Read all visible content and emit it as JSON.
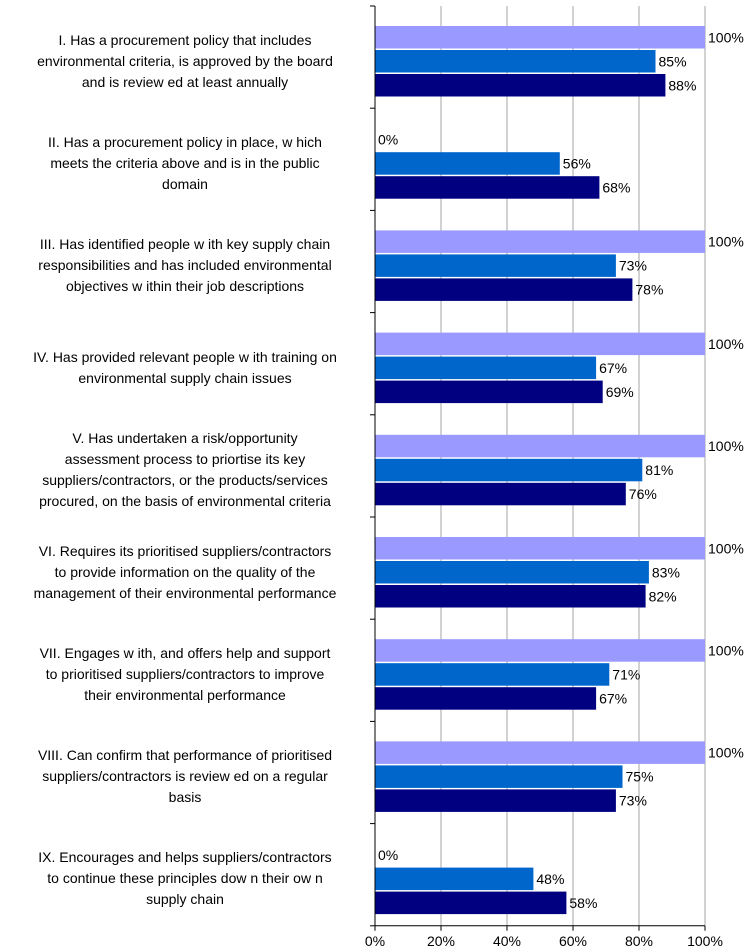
{
  "chart_data": {
    "type": "bar",
    "orientation": "horizontal",
    "categories": [
      "I. Has a procurement policy that includes environmental criteria, is approved by the board and is review ed at least annually",
      "II. Has a procurement policy in place, w hich meets the criteria above and is in the public domain",
      "III. Has identified people w ith key supply chain responsibilities and has included environmental objectives w ithin their job descriptions",
      "IV. Has provided relevant people w ith training on environmental supply chain issues",
      "V. Has undertaken a risk/opportunity assessment process to priortise its key suppliers/contractors, or the products/services procured, on the basis of environmental criteria",
      "VI. Requires its prioritised suppliers/contractors to provide information on the quality of the management of their environmental performance",
      "VII. Engages w ith, and offers help and support to prioritised suppliers/contractors to improve their environmental performance",
      "VIII. Can confirm that performance of prioritised suppliers/contractors is review ed on a regular basis",
      "IX. Encourages and helps suppliers/contractors to continue these principles dow n their ow n supply chain"
    ],
    "category_lines": [
      [
        "I. Has a procurement policy that includes",
        "environmental criteria, is approved by the board",
        "and is review ed at least annually"
      ],
      [
        "II. Has a procurement policy in place, w hich",
        "meets the criteria above and is in the public",
        "domain"
      ],
      [
        "III. Has identified people w ith key supply chain",
        "responsibilities and has included environmental",
        "objectives w ithin their job descriptions"
      ],
      [
        "IV. Has provided relevant people w ith training on",
        "environmental supply chain issues"
      ],
      [
        "V. Has undertaken a risk/opportunity",
        "assessment process to priortise its key",
        "suppliers/contractors, or the products/services",
        "procured, on the basis of environmental criteria"
      ],
      [
        "VI. Requires its prioritised suppliers/contractors",
        "to provide information on the quality of the",
        "management of their environmental performance"
      ],
      [
        "VII. Engages w ith, and offers help and support",
        "to prioritised suppliers/contractors to improve",
        "their environmental performance"
      ],
      [
        "VIII. Can confirm that performance of prioritised",
        "suppliers/contractors is review ed on a regular",
        "basis"
      ],
      [
        "IX. Encourages and helps suppliers/contractors",
        "to continue these principles dow n their ow n",
        "supply chain"
      ]
    ],
    "series": [
      {
        "values": [
          100,
          0,
          100,
          100,
          100,
          100,
          100,
          100,
          0
        ],
        "color": "#9999ff"
      },
      {
        "values": [
          85,
          56,
          73,
          67,
          81,
          83,
          71,
          75,
          48
        ],
        "color": "#0066cc"
      },
      {
        "values": [
          88,
          68,
          78,
          69,
          76,
          82,
          67,
          73,
          58
        ],
        "color": "#000080"
      }
    ],
    "value_labels": [
      [
        "100%",
        "0%",
        "100%",
        "100%",
        "100%",
        "100%",
        "100%",
        "100%",
        "0%"
      ],
      [
        "85%",
        "56%",
        "73%",
        "67%",
        "81%",
        "83%",
        "71%",
        "75%",
        "48%"
      ],
      [
        "88%",
        "68%",
        "78%",
        "69%",
        "76%",
        "82%",
        "67%",
        "73%",
        "58%"
      ]
    ],
    "x_ticks": [
      "0%",
      "20%",
      "40%",
      "60%",
      "80%",
      "100%"
    ],
    "xlim": [
      0,
      100
    ],
    "grid": "vertical",
    "legend": "none",
    "title": "",
    "xlabel": "",
    "ylabel": ""
  }
}
